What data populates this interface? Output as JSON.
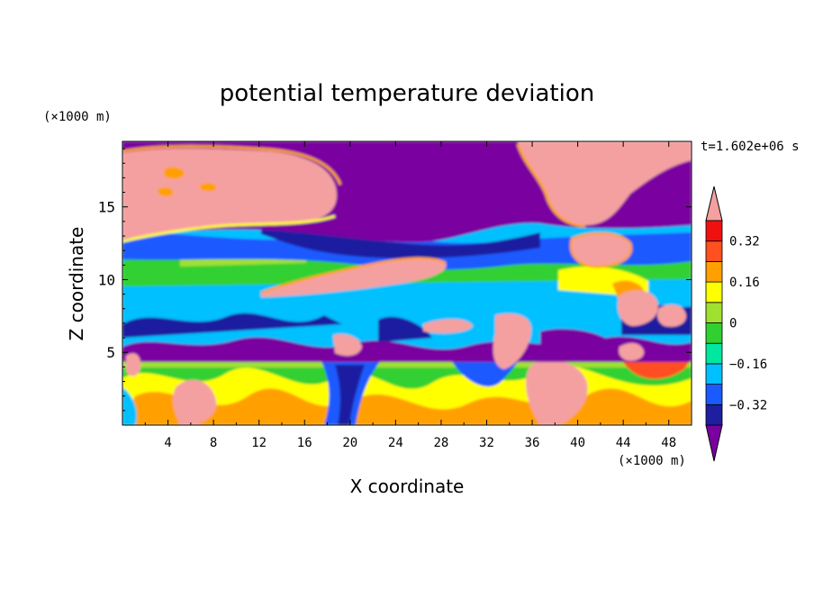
{
  "chart_data": {
    "type": "heatmap",
    "title": "potential temperature deviation",
    "xlabel": "X coordinate",
    "ylabel": "Z coordinate",
    "x_unit": "(×1000 m)",
    "y_unit": "(×1000 m)",
    "time_label": "t=1.602e+06 s",
    "xlim": [
      0,
      50
    ],
    "ylim": [
      0,
      19.5
    ],
    "x_ticks": [
      4,
      8,
      12,
      16,
      20,
      24,
      28,
      32,
      36,
      40,
      44,
      48
    ],
    "y_ticks": [
      5,
      10,
      15
    ],
    "x_tick_labels": [
      "4",
      "8",
      "12",
      "16",
      "20",
      "24",
      "28",
      "32",
      "36",
      "40",
      "44",
      "48"
    ],
    "y_tick_labels": [
      "5",
      "10",
      "15"
    ],
    "colorbar": {
      "levels": [
        -0.4,
        -0.32,
        -0.24,
        -0.16,
        -0.08,
        0,
        0.08,
        0.16,
        0.24,
        0.32,
        0.4
      ],
      "colors": [
        "#7a00a0",
        "#1e1ea0",
        "#1a5aff",
        "#00c0ff",
        "#00e8a0",
        "#30d030",
        "#a0e030",
        "#ffff00",
        "#ffa000",
        "#ff5020",
        "#f01010",
        "#f5a0a0"
      ],
      "tick_values": [
        0.32,
        0.16,
        0,
        -0.16,
        -0.32
      ],
      "tick_labels": [
        "0.32",
        "0.16",
        "0",
        "−0.16",
        "−0.32"
      ],
      "extend": "both"
    }
  }
}
